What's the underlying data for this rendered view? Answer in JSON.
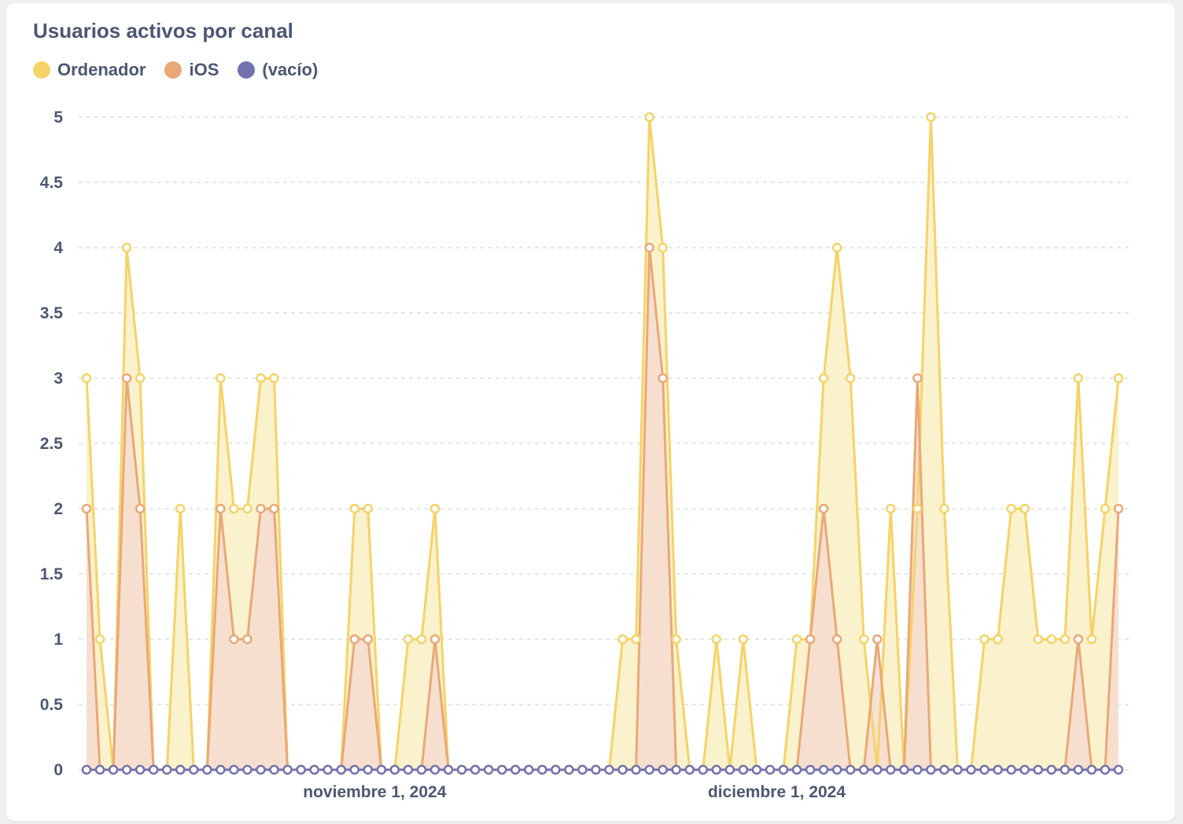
{
  "chart_data": {
    "type": "area",
    "title": "Usuarios activos por canal",
    "xlabel": "",
    "ylabel": "",
    "x_tick_labels": [
      "noviembre 1, 2024",
      "diciembre 1, 2024"
    ],
    "y_ticks": [
      "0",
      "0.5",
      "1",
      "1.5",
      "2",
      "2.5",
      "3",
      "3.5",
      "4",
      "4.5",
      "5"
    ],
    "ylim": [
      0,
      5
    ],
    "grid": "horizontal dashed",
    "legend_position": "top-left",
    "series": [
      {
        "name": "Ordenador",
        "color": "#f5d366",
        "fill": "#faf0c8",
        "values": [
          3,
          1,
          0,
          4,
          3,
          0,
          0,
          2,
          0,
          0,
          3,
          2,
          2,
          3,
          3,
          0,
          0,
          0,
          0,
          0,
          2,
          2,
          0,
          0,
          1,
          1,
          2,
          0,
          0,
          0,
          0,
          0,
          0,
          0,
          0,
          0,
          0,
          0,
          0,
          0,
          1,
          1,
          5,
          4,
          1,
          0,
          0,
          1,
          0,
          1,
          0,
          0,
          0,
          1,
          1,
          3,
          4,
          3,
          1,
          0,
          2,
          0,
          2,
          5,
          2,
          0,
          0,
          1,
          1,
          2,
          2,
          1,
          1,
          1,
          3,
          1,
          2,
          3
        ]
      },
      {
        "name": "iOS",
        "color": "#e9a877",
        "fill": "#f6ddd0",
        "values": [
          2,
          0,
          0,
          3,
          2,
          0,
          0,
          0,
          0,
          0,
          2,
          1,
          1,
          2,
          2,
          0,
          0,
          0,
          0,
          0,
          1,
          1,
          0,
          0,
          0,
          0,
          1,
          0,
          0,
          0,
          0,
          0,
          0,
          0,
          0,
          0,
          0,
          0,
          0,
          0,
          0,
          0,
          4,
          3,
          0,
          0,
          0,
          0,
          0,
          0,
          0,
          0,
          0,
          0,
          1,
          2,
          1,
          0,
          0,
          1,
          0,
          0,
          3,
          0,
          0,
          0,
          0,
          0,
          0,
          0,
          0,
          0,
          0,
          0,
          1,
          0,
          0,
          2
        ]
      },
      {
        "name": "(vacío)",
        "color": "#7172ad",
        "fill": "#e4e4f0",
        "values": [
          0,
          0,
          0,
          0,
          0,
          0,
          0,
          0,
          0,
          0,
          0,
          0,
          0,
          0,
          0,
          0,
          0,
          0,
          0,
          0,
          0,
          0,
          0,
          0,
          0,
          0,
          0,
          0,
          0,
          0,
          0,
          0,
          0,
          0,
          0,
          0,
          0,
          0,
          0,
          0,
          0,
          0,
          0,
          0,
          0,
          0,
          0,
          0,
          0,
          0,
          0,
          0,
          0,
          0,
          0,
          0,
          0,
          0,
          0,
          0,
          0,
          0,
          0,
          0,
          0,
          0,
          0,
          0,
          0,
          0,
          0,
          0,
          0,
          0,
          0,
          0,
          0,
          0
        ]
      }
    ]
  }
}
